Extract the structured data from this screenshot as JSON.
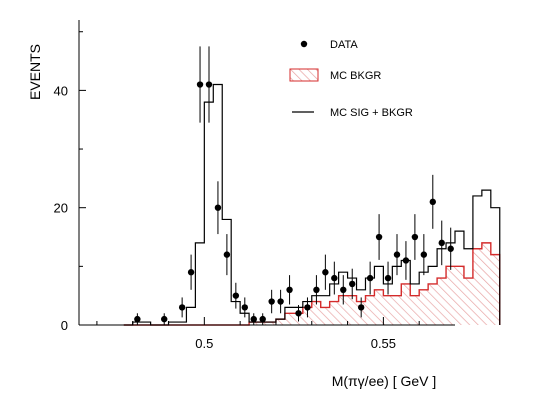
{
  "chart_data": {
    "type": "histogram",
    "title": "",
    "xlabel": "M(πγ/ee) [ GeV ]",
    "ylabel": "EVENTS",
    "xlim": [
      0.465,
      0.57
    ],
    "ylim": [
      0,
      52
    ],
    "xticks": [
      0.5,
      0.55
    ],
    "xtick_labels": [
      "0.5",
      "0.55"
    ],
    "yticks": [
      0,
      20,
      40
    ],
    "ytick_labels": [
      "0",
      "20",
      "40"
    ],
    "grid": false,
    "legend_position": "top-right",
    "legend": [
      {
        "key": "data",
        "label": "DATA"
      },
      {
        "key": "bkgr",
        "label": "MC BKGR"
      },
      {
        "key": "sig",
        "label": "MC SIG + BKGR"
      }
    ],
    "bin_width": 0.0025,
    "bin_edges_start": 0.4775,
    "series": [
      {
        "key": "data",
        "name": "DATA",
        "x": [
          0.4813,
          0.4888,
          0.4938,
          0.4963,
          0.4988,
          0.5013,
          0.5038,
          0.5063,
          0.5088,
          0.5113,
          0.5138,
          0.5163,
          0.5188,
          0.5213,
          0.5238,
          0.5263,
          0.5288,
          0.5313,
          0.5338,
          0.5363,
          0.5388,
          0.5413,
          0.5438,
          0.5463,
          0.5488,
          0.5513,
          0.5538,
          0.5563,
          0.5588,
          0.5613,
          0.5638,
          0.5663,
          0.5688
        ],
        "y": [
          1,
          1,
          3,
          9,
          41,
          41,
          20,
          12,
          5,
          3,
          1,
          1,
          4,
          4,
          6,
          2,
          3,
          6,
          9,
          8,
          6,
          7,
          3,
          8,
          15,
          8,
          12,
          11,
          15,
          12,
          21,
          14,
          13
        ],
        "yerr": [
          1,
          1,
          1.7,
          3,
          6.5,
          6.5,
          4.5,
          3.5,
          2.2,
          1.7,
          1,
          1,
          2,
          2,
          2.5,
          1.4,
          1.7,
          2.5,
          3,
          2.8,
          2.5,
          2.6,
          1.7,
          2.8,
          3.9,
          2.8,
          3.5,
          3.3,
          3.9,
          3.5,
          4.6,
          3.8,
          3.6
        ]
      },
      {
        "key": "sig",
        "name": "MC SIG + BKGR",
        "values": [
          0,
          0.5,
          0.5,
          0,
          0,
          0.5,
          0.5,
          3,
          14,
          38,
          41,
          18,
          4,
          2,
          0.5,
          0.5,
          0.5,
          1,
          3,
          3,
          4,
          5,
          5,
          7,
          9,
          8,
          6,
          8,
          10,
          7,
          10,
          11,
          7,
          9,
          10,
          13,
          14,
          16,
          13,
          22,
          23,
          20
        ]
      },
      {
        "key": "bkgr",
        "name": "MC BKGR",
        "values": [
          0,
          0,
          0,
          0,
          0,
          0,
          0,
          0,
          0,
          0,
          0,
          0,
          0,
          0,
          0.5,
          0.5,
          0.5,
          1,
          2,
          2,
          3,
          4,
          3,
          4,
          5,
          5,
          4,
          5,
          6,
          5,
          5,
          7,
          5,
          6,
          7,
          8,
          10,
          10,
          8,
          13,
          14,
          12
        ]
      }
    ],
    "colors": {
      "data": "#000000",
      "sig": "#000000",
      "bkgr": "#d42b2b",
      "bkgr_hatch": "#e8a5a5"
    }
  }
}
